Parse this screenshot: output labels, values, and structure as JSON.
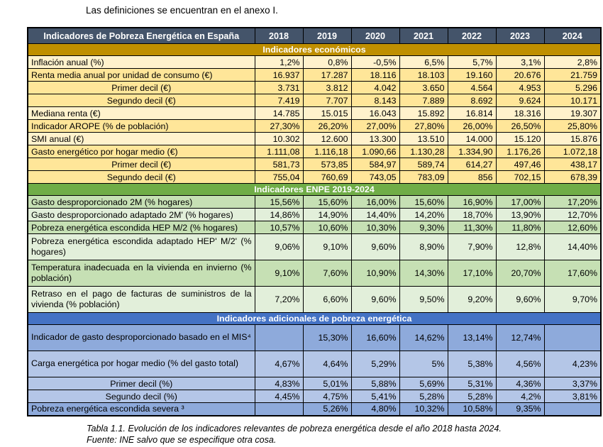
{
  "intro": "Las definiciones se encuentran en el anexo I.",
  "table": {
    "title": "Indicadores de Pobreza Energética en España",
    "years": [
      "2018",
      "2019",
      "2020",
      "2021",
      "2022",
      "2023",
      "2024"
    ],
    "colors": {
      "main_header_bg": "#44546A",
      "main_header_text": "#FFFFFF",
      "econ_light_row": "#FFF2CC",
      "econ_dark_row": "#FFE699",
      "enpe_dark_row": "#C6E0B4",
      "enpe_light_row": "#E2EFDA",
      "adic_dark_row": "#8EAADB",
      "adic_light_row": "#B4C6E7"
    },
    "sections": [
      {
        "title": "Indicadores económicos",
        "header_bg": "#BF8F00",
        "rows": [
          {
            "label": "Inflación anual (%)",
            "bg": "#FFF2CC",
            "values": [
              "1,2%",
              "0,8%",
              "-0,5%",
              "6,5%",
              "5,7%",
              "3,1%",
              "2,8%"
            ]
          },
          {
            "label": "Renta media anual por unidad de consumo (€)",
            "bg": "#FFE699",
            "values": [
              "16.937",
              "17.287",
              "18.116",
              "18.103",
              "19.160",
              "20.676",
              "21.759"
            ]
          },
          {
            "label": "Primer decil (€)",
            "indent": true,
            "bg": "#FFE699",
            "values": [
              "3.731",
              "3.812",
              "4.042",
              "3.650",
              "4.564",
              "4.953",
              "5.296"
            ]
          },
          {
            "label": "Segundo decil (€)",
            "indent": true,
            "bg": "#FFE699",
            "values": [
              "7.419",
              "7.707",
              "8.143",
              "7.889",
              "8.692",
              "9.624",
              "10.171"
            ]
          },
          {
            "label": "Mediana renta (€)",
            "bg": "#FFF2CC",
            "values": [
              "14.785",
              "15.015",
              "16.043",
              "15.892",
              "16.814",
              "18.316",
              "19.307"
            ]
          },
          {
            "label": "Indicador AROPE (% de población)",
            "bg": "#FFE699",
            "values": [
              "27,30%",
              "26,20%",
              "27,00%",
              "27,80%",
              "26,00%",
              "26,50%",
              "25,80%"
            ]
          },
          {
            "label": "SMI anual (€)",
            "bg": "#FFF2CC",
            "values": [
              "10.302",
              "12.600",
              "13.300",
              "13.510",
              "14.000",
              "15.120",
              "15.876"
            ]
          },
          {
            "label": "Gasto energético por hogar medio (€)",
            "bg": "#FFE699",
            "values": [
              "1.111,08",
              "1.116,18",
              "1.090,66",
              "1.130,28",
              "1.334,90",
              "1.176,26",
              "1.072,18"
            ]
          },
          {
            "label": "Primer decil (€)",
            "indent": true,
            "bg": "#FFE699",
            "values": [
              "581,73",
              "573,85",
              "584,97",
              "589,74",
              "614,27",
              "497,46",
              "438,17"
            ]
          },
          {
            "label": "Segundo decil (€)",
            "indent": true,
            "bg": "#FFE699",
            "values": [
              "755,04",
              "760,69",
              "743,05",
              "783,09",
              "856",
              "702,15",
              "678,39"
            ]
          }
        ]
      },
      {
        "title": "Indicadores ENPE 2019-2024",
        "header_bg": "#70AD47",
        "rows": [
          {
            "label": "Gasto desproporcionado 2M (% hogares)",
            "bg": "#C6E0B4",
            "values": [
              "15,56%",
              "15,60%",
              "16,00%",
              "15,60%",
              "16,90%",
              "17,00%",
              "17,20%"
            ]
          },
          {
            "label": "Gasto desproporcionado adaptado 2M' (% hogares)",
            "bg": "#E2EFDA",
            "values": [
              "14,86%",
              "14,90%",
              "14,40%",
              "14,20%",
              "18,70%",
              "13,90%",
              "12,70%"
            ]
          },
          {
            "label": "Pobreza energética escondida HEP M/2 (% hogares)",
            "bg": "#C6E0B4",
            "values": [
              "10,57%",
              "10,60%",
              "10,30%",
              "9,30%",
              "11,30%",
              "11,80%",
              "12,60%"
            ]
          },
          {
            "label": "Pobreza energética escondida adaptado HEP' M/2' (% hogares)",
            "bg": "#E2EFDA",
            "tall": true,
            "justify": true,
            "values": [
              "9,06%",
              "9,10%",
              "9,60%",
              "8,90%",
              "7,90%",
              "12,8%",
              "14,40%"
            ]
          },
          {
            "label": "Temperatura inadecuada en la vivienda en invierno (% población)",
            "bg": "#C6E0B4",
            "tall": true,
            "justify": true,
            "values": [
              "9,10%",
              "7,60%",
              "10,90%",
              "14,30%",
              "17,10%",
              "20,70%",
              "17,60%"
            ]
          },
          {
            "label": "Retraso en el pago de facturas de suministros de la vivienda (% población)",
            "bg": "#E2EFDA",
            "tall": true,
            "justify": true,
            "values": [
              "7,20%",
              "6,60%",
              "9,60%",
              "9,50%",
              "9,20%",
              "9,60%",
              "9,70%"
            ]
          }
        ]
      },
      {
        "title": "Indicadores adicionales de pobreza energética",
        "header_bg": "#4472C4",
        "rows": [
          {
            "label": "Indicador de gasto desproporcionado basado en el MIS⁴",
            "bg": "#8EAADB",
            "tall": true,
            "values": [
              "",
              "15,30%",
              "16,60%",
              "14,62%",
              "13,14%",
              "12,74%",
              ""
            ]
          },
          {
            "label": "Carga energética por hogar medio (% del gasto total)",
            "bg": "#B4C6E7",
            "tall": true,
            "values": [
              "4,67%",
              "4,64%",
              "5,29%",
              "5%",
              "5,38%",
              "4,56%",
              "4,23%"
            ]
          },
          {
            "label": "Primer decil (%)",
            "indent": true,
            "bg": "#B4C6E7",
            "values": [
              "4,83%",
              "5,01%",
              "5,88%",
              "5,69%",
              "5,31%",
              "4,36%",
              "3,37%"
            ]
          },
          {
            "label": "Segundo decil (%)",
            "indent": true,
            "bg": "#B4C6E7",
            "values": [
              "4,45%",
              "4,75%",
              "5,41%",
              "5,28%",
              "5,28%",
              "4,2%",
              "3,81%"
            ]
          },
          {
            "label": "Pobreza energética escondida severa ³",
            "bg": "#8EAADB",
            "values": [
              "",
              "5,26%",
              "4,80%",
              "10,32%",
              "10,58%",
              "9,35%",
              ""
            ]
          }
        ]
      }
    ],
    "caption": {
      "line1": "Tabla 1.1. Evolución de los indicadores relevantes de pobreza energética desde el año 2018 hasta 2024.",
      "line2": "Fuente: INE salvo que se especifique otra cosa."
    }
  }
}
